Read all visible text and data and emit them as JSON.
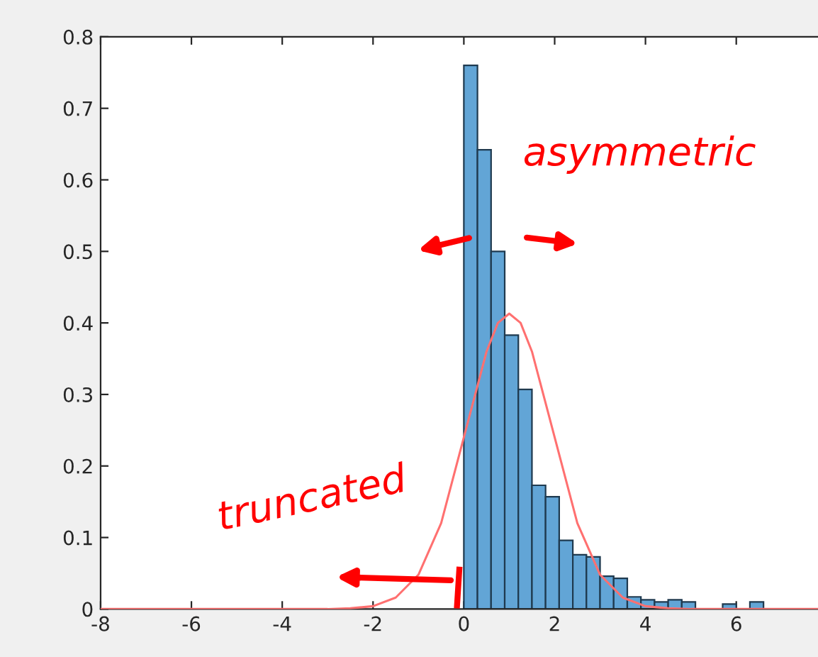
{
  "chart_data": {
    "type": "histogram",
    "xlim": [
      -8,
      7.8
    ],
    "ylim": [
      0,
      0.8
    ],
    "xticks": [
      -8,
      -6,
      -4,
      -2,
      0,
      2,
      4,
      6
    ],
    "yticks": [
      0,
      0.1,
      0.2,
      0.3,
      0.4,
      0.5,
      0.6,
      0.7,
      0.8
    ],
    "series": [
      {
        "color": "#62a5d6",
        "bins": [
          0,
          0.3,
          0.6,
          0.9,
          1.2,
          1.5,
          1.8,
          2.1,
          2.4,
          2.7,
          3.0,
          3.3,
          3.6,
          3.9,
          4.2,
          4.5,
          4.8,
          5.1,
          5.4,
          5.7,
          6.0,
          6.3,
          6.6
        ],
        "values": [
          0.76,
          0.642,
          0.5,
          0.383,
          0.307,
          0.173,
          0.157,
          0.096,
          0.076,
          0.073,
          0.046,
          0.043,
          0.017,
          0.013,
          0.01,
          0.013,
          0.01,
          0,
          0,
          0.007,
          0,
          0.01
        ]
      },
      {
        "type": "line",
        "color": "#ff7070",
        "x": [
          -8,
          -3,
          -2.5,
          -2,
          -1.5,
          -1,
          -0.5,
          0,
          0.25,
          0.5,
          0.75,
          1,
          1.25,
          1.5,
          1.75,
          2,
          2.5,
          3,
          3.5,
          4,
          4.5,
          5,
          6,
          7.8
        ],
        "values": [
          0,
          0,
          0.001,
          0.004,
          0.016,
          0.048,
          0.12,
          0.24,
          0.3,
          0.36,
          0.4,
          0.413,
          0.4,
          0.36,
          0.3,
          0.24,
          0.12,
          0.048,
          0.016,
          0.004,
          0.001,
          0,
          0,
          0
        ]
      }
    ],
    "annotations": [
      "asymmetric",
      "truncated"
    ]
  }
}
